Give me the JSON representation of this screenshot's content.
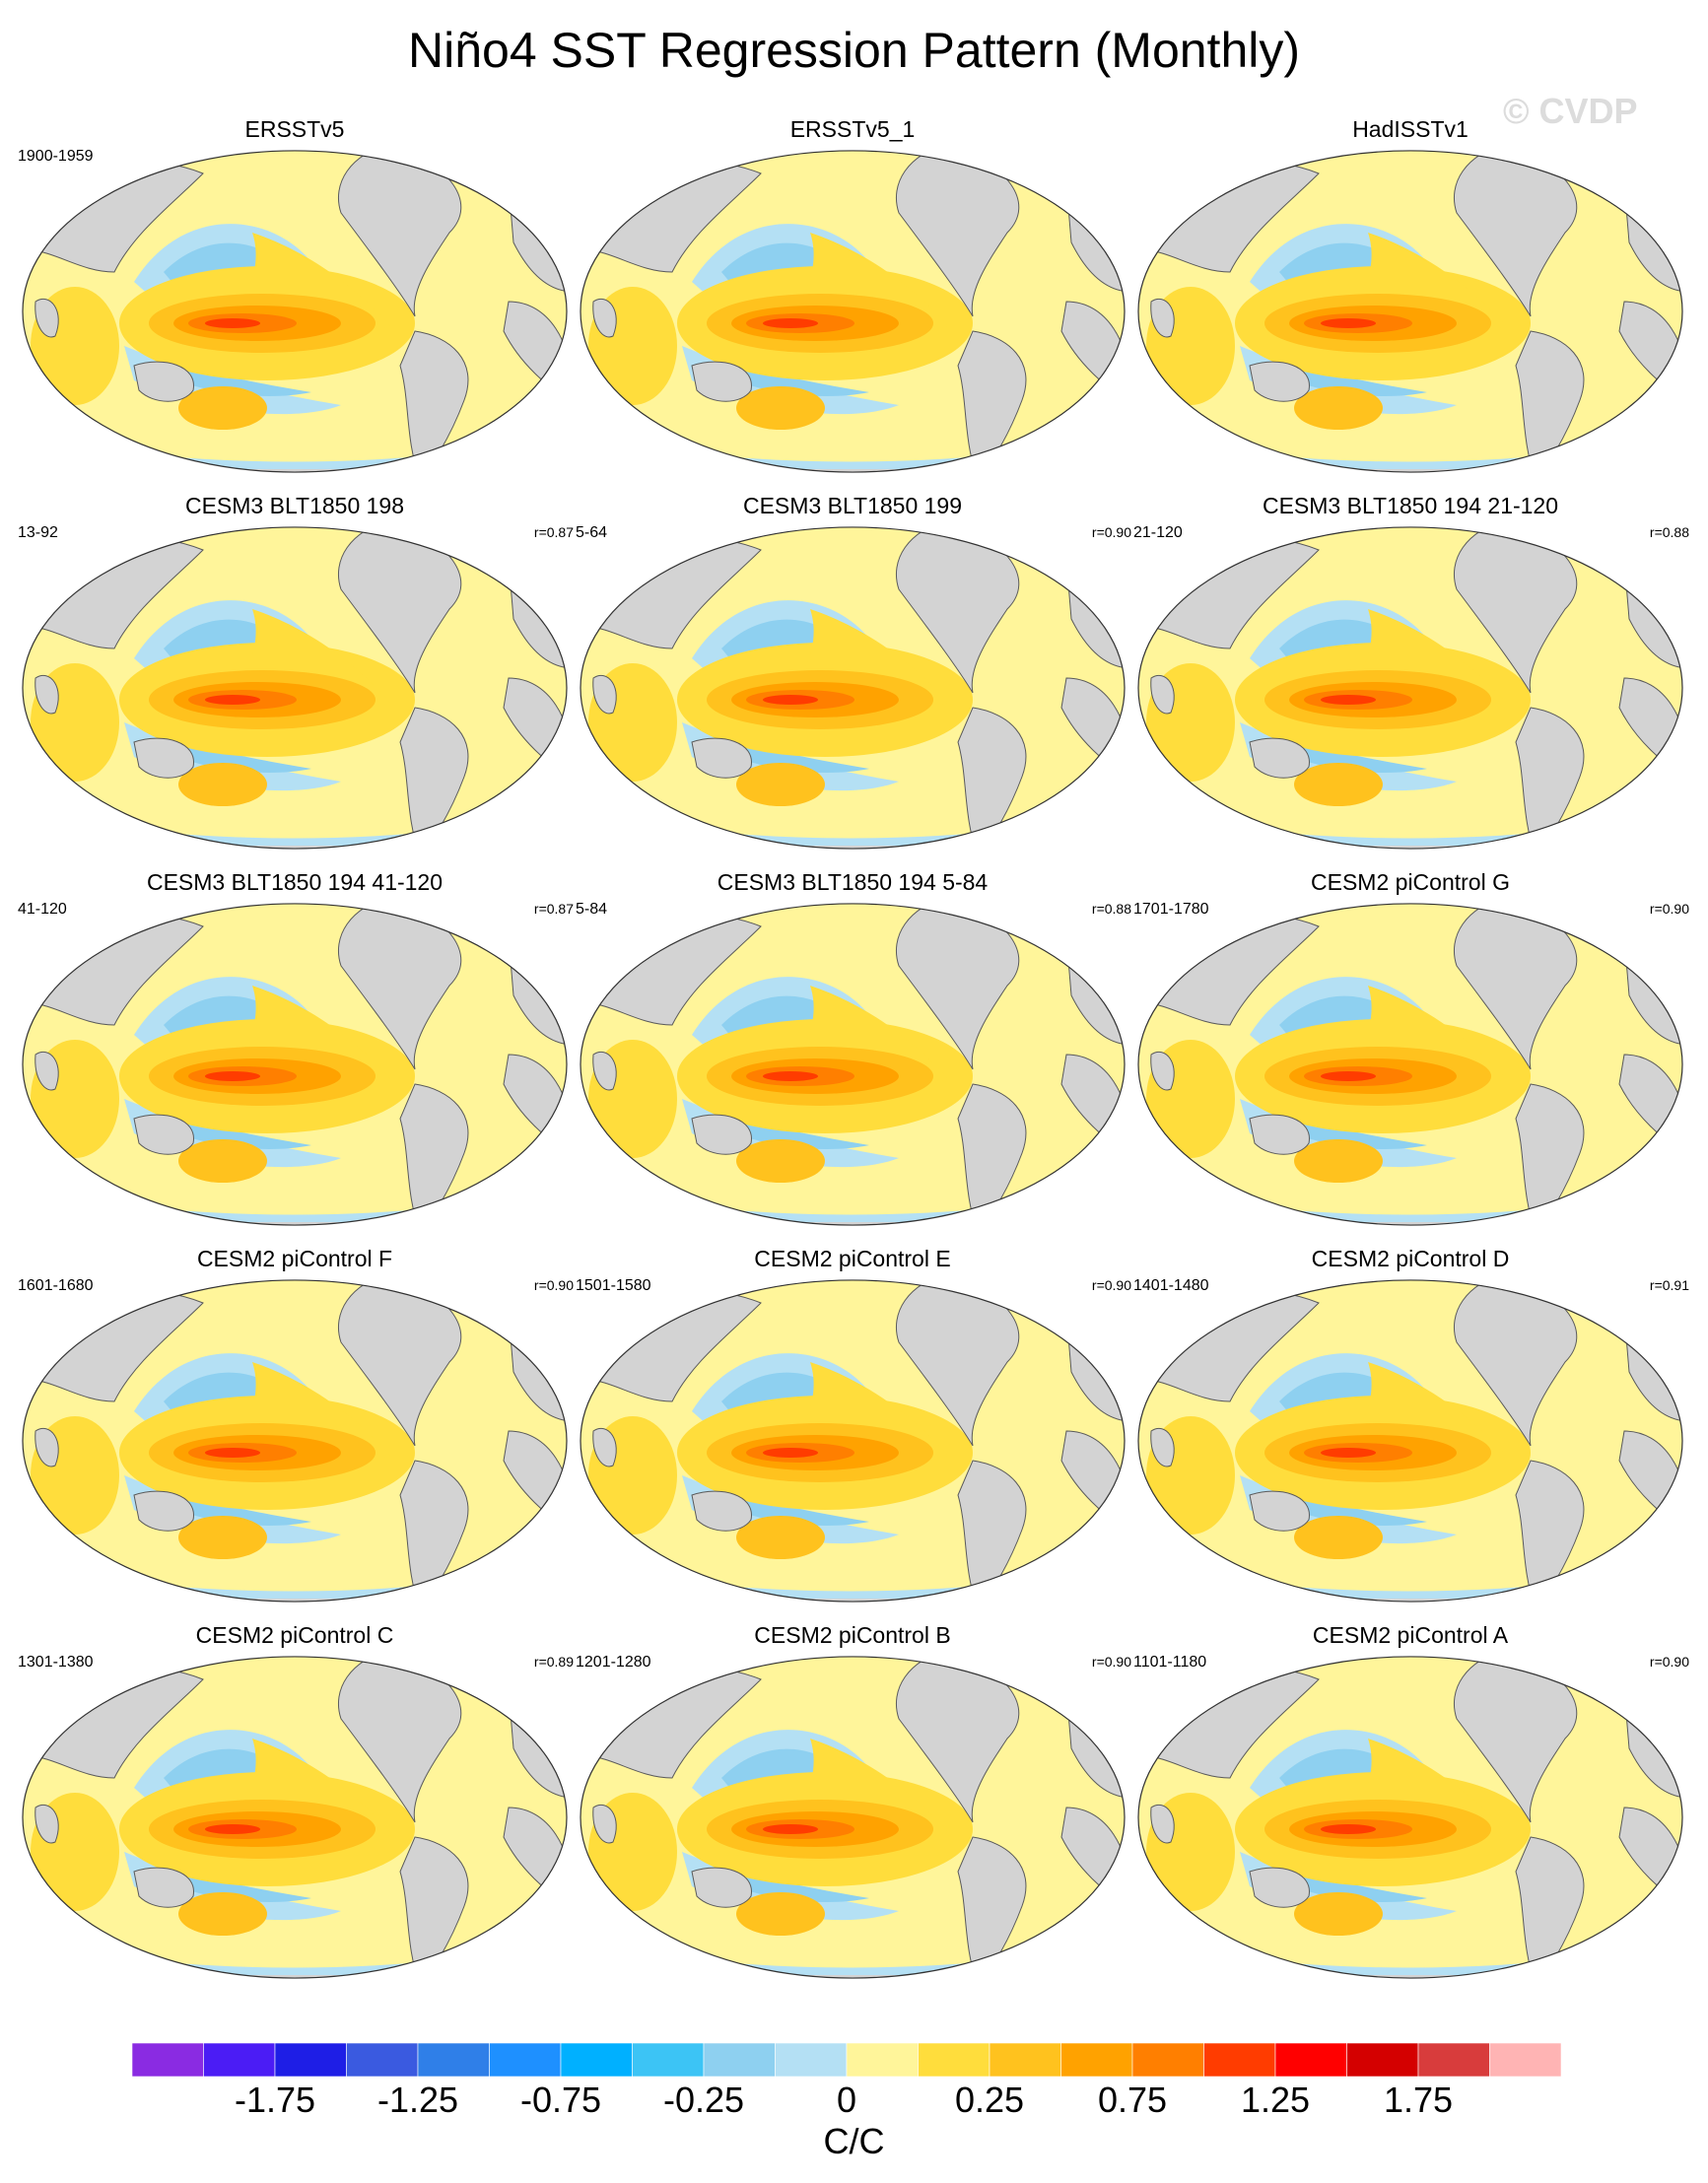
{
  "figure": {
    "title": "Niño4 SST Regression Pattern (Monthly)",
    "watermark": "© CVDP",
    "units": "C/C"
  },
  "panels": [
    {
      "title": "ERSSTv5",
      "period": "1900-1959",
      "corr": ""
    },
    {
      "title": "ERSSTv5_1",
      "period": "",
      "corr": ""
    },
    {
      "title": "HadISSTv1",
      "period": "",
      "corr": ""
    },
    {
      "title": "CESM3 BLT1850 198",
      "period": "13-92",
      "corr": "r=0.87"
    },
    {
      "title": "CESM3 BLT1850 199",
      "period": "5-64",
      "corr": "r=0.90"
    },
    {
      "title": "CESM3 BLT1850 194 21-120",
      "period": "21-120",
      "corr": "r=0.88"
    },
    {
      "title": "CESM3 BLT1850 194 41-120",
      "period": "41-120",
      "corr": "r=0.87"
    },
    {
      "title": "CESM3 BLT1850 194 5-84",
      "period": "5-84",
      "corr": "r=0.88"
    },
    {
      "title": "CESM2 piControl G",
      "period": "1701-1780",
      "corr": "r=0.90"
    },
    {
      "title": "CESM2 piControl F",
      "period": "1601-1680",
      "corr": "r=0.90"
    },
    {
      "title": "CESM2 piControl E",
      "period": "1501-1580",
      "corr": "r=0.90"
    },
    {
      "title": "CESM2 piControl D",
      "period": "1401-1480",
      "corr": "r=0.91"
    },
    {
      "title": "CESM2 piControl C",
      "period": "1301-1380",
      "corr": "r=0.89"
    },
    {
      "title": "CESM2 piControl B",
      "period": "1201-1280",
      "corr": "r=0.90"
    },
    {
      "title": "CESM2 piControl A",
      "period": "1101-1180",
      "corr": "r=0.90"
    }
  ],
  "colorbar": {
    "colors": [
      "#8a2be2",
      "#4b1cf5",
      "#1e1ee6",
      "#3a5ae0",
      "#2f7fe8",
      "#1e90ff",
      "#00b0ff",
      "#3cc4f5",
      "#8ed0f0",
      "#b4e0f4",
      "#fff59a",
      "#ffdd3c",
      "#ffc21e",
      "#ffa200",
      "#ff7f00",
      "#ff3c00",
      "#ff0000",
      "#d40000",
      "#d83c3c",
      "#ffb4b4"
    ],
    "labels": [
      "-1.75",
      "-1.25",
      "-0.75",
      "-0.25",
      "0",
      "0.25",
      "0.75",
      "1.25",
      "1.75"
    ]
  }
}
